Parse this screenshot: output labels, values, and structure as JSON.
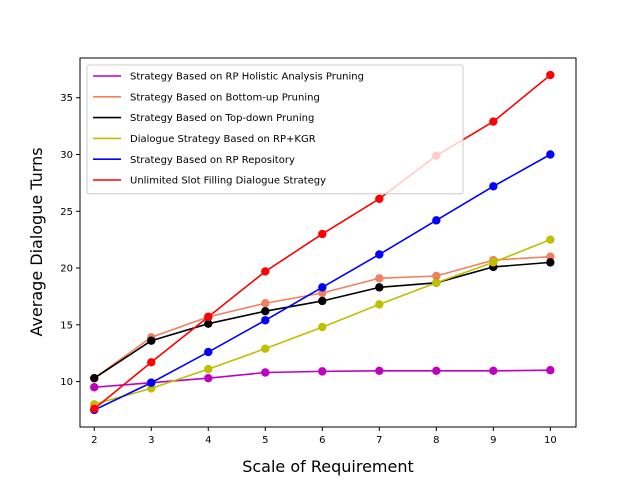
{
  "chart_data": {
    "type": "line",
    "title": "",
    "xlabel": "Scale of Requirement",
    "ylabel": "Average Dialogue Turns",
    "x": [
      2,
      3,
      4,
      5,
      6,
      7,
      8,
      9,
      10
    ],
    "xlim": [
      1.75,
      10.45
    ],
    "ylim": [
      6.0,
      38.5
    ],
    "xticks": [
      2,
      3,
      4,
      5,
      6,
      7,
      8,
      9,
      10
    ],
    "yticks": [
      10,
      15,
      20,
      25,
      30,
      35
    ],
    "grid": false,
    "legend_position": "upper-left",
    "series": [
      {
        "name": "Strategy Based on RP Holistic Analysis Pruning",
        "color": "#bf00bf",
        "values": [
          9.5,
          9.9,
          10.3,
          10.8,
          10.9,
          10.95,
          10.95,
          10.95,
          11.0
        ]
      },
      {
        "name": "Strategy Based on Bottom-up Pruning",
        "color": "#f08060",
        "values": [
          10.3,
          13.9,
          15.7,
          16.9,
          17.8,
          19.1,
          19.3,
          20.7,
          21.0
        ]
      },
      {
        "name": "Strategy Based on Top-down Pruning",
        "color": "#000000",
        "values": [
          10.3,
          13.6,
          15.1,
          16.2,
          17.1,
          18.3,
          18.7,
          20.1,
          20.5
        ]
      },
      {
        "name": "Dialogue Strategy Based on RP+KGR",
        "color": "#bfbf00",
        "values": [
          8.0,
          9.4,
          11.1,
          12.9,
          14.8,
          16.8,
          18.7,
          20.5,
          22.5
        ]
      },
      {
        "name": "Strategy Based on RP Repository",
        "color": "#0000ff",
        "values": [
          7.5,
          9.9,
          12.6,
          15.4,
          18.3,
          21.2,
          24.2,
          27.2,
          30.0
        ]
      },
      {
        "name": "Unlimited Slot Filling Dialogue Strategy",
        "color": "#ff0000",
        "values": [
          7.6,
          11.7,
          15.7,
          19.7,
          23.0,
          26.1,
          29.9,
          32.9,
          37.0
        ]
      }
    ]
  }
}
